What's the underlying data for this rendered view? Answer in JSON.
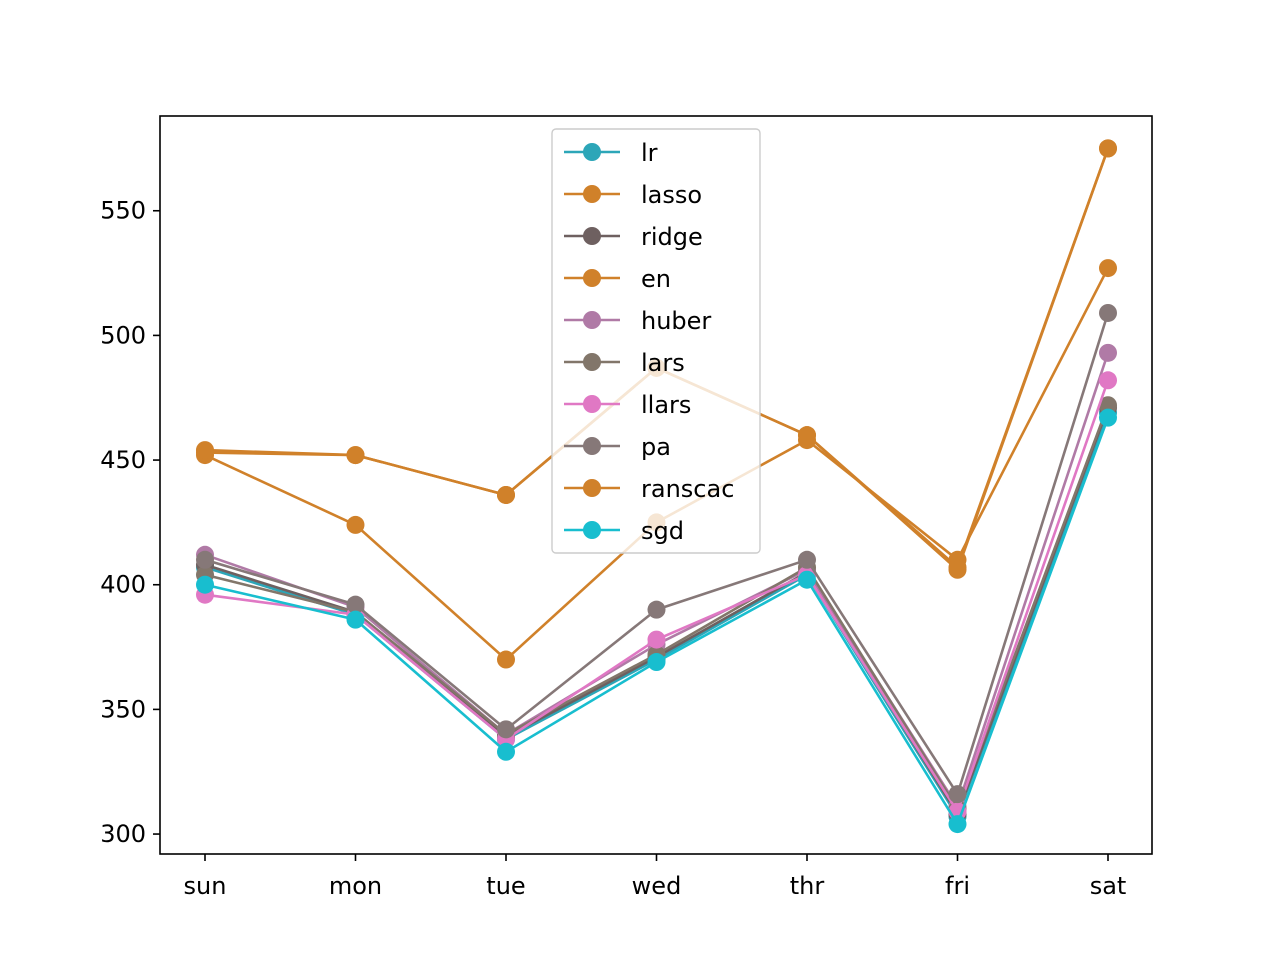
{
  "chart_data": {
    "type": "line",
    "categories": [
      "sun",
      "mon",
      "tue",
      "wed",
      "thr",
      "fri",
      "sat"
    ],
    "ylim": [
      292,
      588
    ],
    "yticks": [
      300,
      350,
      400,
      450,
      500,
      550
    ],
    "grid": false,
    "legend_position": "top-center",
    "series": [
      {
        "name": "lr",
        "color": "#2ca6b8",
        "values": [
          407,
          388,
          338,
          370,
          404,
          307,
          469
        ]
      },
      {
        "name": "lasso",
        "color": "#d0812a",
        "values": [
          453,
          452,
          436,
          487,
          460,
          407,
          575
        ]
      },
      {
        "name": "ridge",
        "color": "#6e6060",
        "values": [
          408,
          389,
          339,
          371,
          405,
          308,
          471
        ]
      },
      {
        "name": "en",
        "color": "#d0812a",
        "values": [
          452,
          424,
          370,
          425,
          458,
          410,
          527
        ]
      },
      {
        "name": "huber",
        "color": "#b07aa6",
        "values": [
          412,
          391,
          340,
          376,
          406,
          311,
          493
        ]
      },
      {
        "name": "lars",
        "color": "#82766a",
        "values": [
          404,
          389,
          340,
          372,
          407,
          310,
          472
        ]
      },
      {
        "name": "llars",
        "color": "#e078c4",
        "values": [
          396,
          388,
          338,
          378,
          404,
          309,
          482
        ]
      },
      {
        "name": "pa",
        "color": "#867878",
        "values": [
          410,
          392,
          342,
          390,
          410,
          316,
          509
        ]
      },
      {
        "name": "ranscac",
        "color": "#d0812a",
        "values": [
          454,
          452,
          436,
          487,
          460,
          406,
          575
        ]
      },
      {
        "name": "sgd",
        "color": "#18becf",
        "values": [
          400,
          386,
          333,
          369,
          402,
          304,
          467
        ]
      }
    ]
  }
}
